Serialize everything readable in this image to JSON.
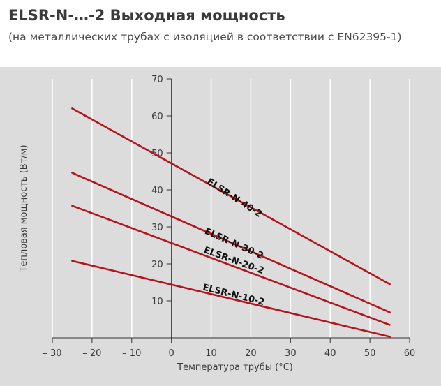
{
  "header": {
    "title": "ELSR-N-…-2 Выходная мощность",
    "subtitle": "(на металлических трубах с изоляцией в соответствии с EN62395-1)"
  },
  "colors": {
    "panel_background": "#dcdcdc",
    "series_line": "#b3141e",
    "gridline": "#ffffff",
    "axis": "#333333"
  },
  "chart_data": {
    "type": "line",
    "title": "",
    "xlabel": "Температура трубы (°C)",
    "ylabel": "Тепловая мощность (Вт/м)",
    "xlim": [
      -30,
      60
    ],
    "ylim": [
      0,
      70
    ],
    "x_ticks": [
      -30,
      -20,
      -10,
      0,
      10,
      20,
      30,
      40,
      50,
      60
    ],
    "x_tick_labels": [
      "– 30",
      "– 20",
      "– 10",
      "0",
      "10",
      "20",
      "30",
      "40",
      "50",
      "60"
    ],
    "y_ticks": [
      10,
      20,
      30,
      40,
      50,
      60,
      70
    ],
    "y_tick_labels": [
      "10",
      "20",
      "30",
      "40",
      "50",
      "60",
      "70"
    ],
    "grid": true,
    "legend": "none",
    "series": [
      {
        "name": "ELSR-N-40-2",
        "x": [
          -25,
          55
        ],
        "y": [
          62,
          14.5
        ],
        "label_at": [
          15.5,
          37.2
        ],
        "label_angle": 33
      },
      {
        "name": "ELSR-N-30-2",
        "x": [
          -25,
          55
        ],
        "y": [
          44.6,
          6.9
        ],
        "label_at": [
          15.5,
          24.8
        ],
        "label_angle": 24
      },
      {
        "name": "ELSR-N-20-2",
        "x": [
          -25,
          55
        ],
        "y": [
          35.7,
          3.5
        ],
        "label_at": [
          15.5,
          20.2
        ],
        "label_angle": 20
      },
      {
        "name": "ELSR-N-10-2",
        "x": [
          -25,
          55
        ],
        "y": [
          20.8,
          0.3
        ],
        "label_at": [
          15.5,
          10.9
        ],
        "label_angle": 14
      }
    ]
  }
}
